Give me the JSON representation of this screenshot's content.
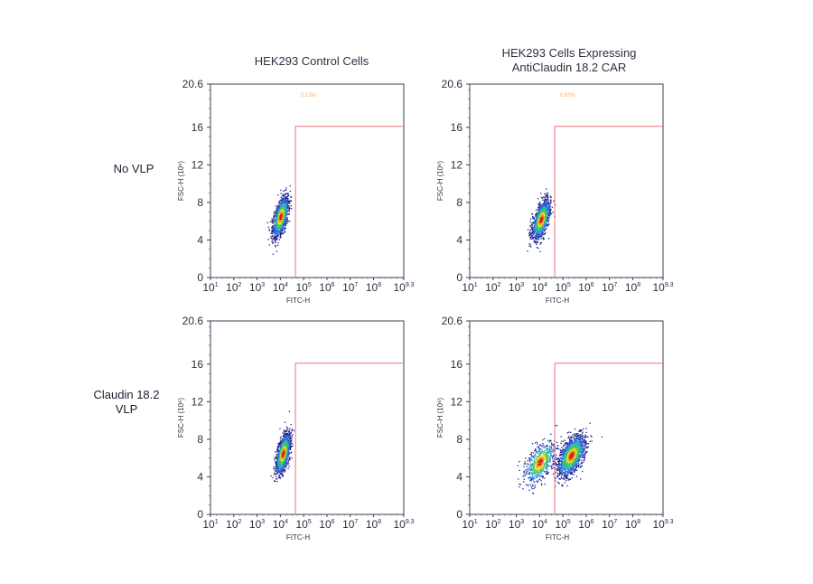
{
  "chart_data": [
    {
      "type": "scatter",
      "title": "HEK293 Control Cells",
      "row_label": "No VLP",
      "xlabel": "FITC-H",
      "ylabel": "FSC-H (10⁶)",
      "xscale": "log",
      "xlim_log10": [
        1,
        9.3
      ],
      "ylim": [
        0,
        20.6
      ],
      "yticks": [
        0,
        4,
        8,
        12,
        16,
        20.6
      ],
      "xtick_exponents": [
        "1",
        "2",
        "3",
        "4",
        "5",
        "6",
        "7",
        "8",
        "9.3"
      ],
      "gate": {
        "fitc_log10_min": 4.65,
        "fsc_max": 16.1
      },
      "gate_percent": "0.13%",
      "populations": [
        {
          "fitc_log10_center": 4.0,
          "fsc_center": 6.5,
          "fitc_log10_sd": 0.17,
          "fsc_sd": 1.05,
          "events": 1400
        }
      ]
    },
    {
      "type": "scatter",
      "title": "HEK293 Cells Expressing AntiClaudin 18.2 CAR",
      "row_label": "No VLP",
      "xlabel": "FITC-H",
      "ylabel": "FSC-H (10⁶)",
      "xscale": "log",
      "xlim_log10": [
        1,
        9.3
      ],
      "ylim": [
        0,
        20.6
      ],
      "yticks": [
        0,
        4,
        8,
        12,
        16,
        20.6
      ],
      "xtick_exponents": [
        "1",
        "2",
        "3",
        "4",
        "5",
        "6",
        "7",
        "8",
        "9.3"
      ],
      "gate": {
        "fitc_log10_min": 4.65,
        "fsc_max": 16.1
      },
      "gate_percent": "0.65%",
      "populations": [
        {
          "fitc_log10_center": 4.05,
          "fsc_center": 6.2,
          "fitc_log10_sd": 0.2,
          "fsc_sd": 1.0,
          "events": 1400
        }
      ]
    },
    {
      "type": "scatter",
      "title": "",
      "row_label": "Claudin 18.2 VLP",
      "xlabel": "FITC-H",
      "ylabel": "FSC-H (10⁶)",
      "xscale": "log",
      "xlim_log10": [
        1,
        9.3
      ],
      "ylim": [
        0,
        20.6
      ],
      "yticks": [
        0,
        4,
        8,
        12,
        16,
        20.6
      ],
      "xtick_exponents": [
        "1",
        "2",
        "3",
        "4",
        "5",
        "6",
        "7",
        "8",
        "9.3"
      ],
      "gate": {
        "fitc_log10_min": 4.65,
        "fsc_max": 16.1
      },
      "gate_percent": "",
      "populations": [
        {
          "fitc_log10_center": 4.1,
          "fsc_center": 6.5,
          "fitc_log10_sd": 0.16,
          "fsc_sd": 1.05,
          "events": 1400
        }
      ]
    },
    {
      "type": "scatter",
      "title": "",
      "row_label": "Claudin 18.2 VLP",
      "xlabel": "FITC-H",
      "ylabel": "FSC-H (10⁶)",
      "xscale": "log",
      "xlim_log10": [
        1,
        9.3
      ],
      "ylim": [
        0,
        20.6
      ],
      "yticks": [
        0,
        4,
        8,
        12,
        16,
        20.6
      ],
      "xtick_exponents": [
        "1",
        "2",
        "3",
        "4",
        "5",
        "6",
        "7",
        "8",
        "9.3"
      ],
      "gate": {
        "fitc_log10_min": 4.65,
        "fsc_max": 16.1
      },
      "gate_percent": "",
      "populations": [
        {
          "fitc_log10_center": 4.0,
          "fsc_center": 5.6,
          "fitc_log10_sd": 0.32,
          "fsc_sd": 1.1,
          "events": 700
        },
        {
          "fitc_log10_center": 5.35,
          "fsc_center": 6.3,
          "fitc_log10_sd": 0.28,
          "fsc_sd": 1.05,
          "events": 1700
        }
      ]
    }
  ],
  "labels": {
    "col1": "HEK293 Control Cells",
    "col2_line1": "HEK293 Cells Expressing",
    "col2_line2": "AntiClaudin 18.2 CAR",
    "row1": "No VLP",
    "row2_line1": "Claudin 18.2",
    "row2_line2": "VLP"
  },
  "colors": {
    "gate": "#e8737a",
    "axis": "#3a4150",
    "density": [
      "#1a1f8c",
      "#2b5fd0",
      "#2bb0c8",
      "#4cc84c",
      "#e6e02a",
      "#f08a1c",
      "#d8201c"
    ]
  }
}
